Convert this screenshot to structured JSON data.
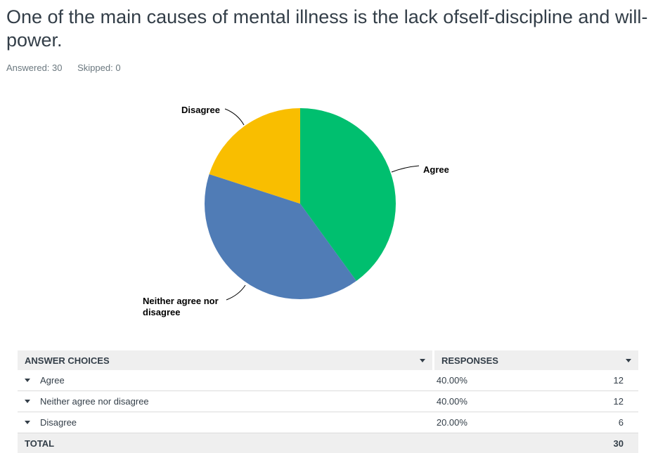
{
  "question": "One of the main causes of mental illness is the lack ofself-discipline and will-power.",
  "stats": {
    "answered": "Answered: 30",
    "skipped": "Skipped: 0"
  },
  "colors": {
    "agree": "#00bf6f",
    "neither": "#507cb6",
    "disagree": "#f9be00"
  },
  "chart_data": {
    "type": "pie",
    "categories": [
      "Agree",
      "Neither agree nor disagree",
      "Disagree"
    ],
    "values": [
      40,
      40,
      20
    ],
    "labels": [
      "Agree",
      "Neither agree nor\ndisagree",
      "Disagree"
    ],
    "colors": [
      "#00bf6f",
      "#507cb6",
      "#f9be00"
    ]
  },
  "table": {
    "col_choices": "ANSWER CHOICES",
    "col_responses": "RESPONSES",
    "rows": [
      {
        "choice": "Agree",
        "percent": "40.00%",
        "count": "12"
      },
      {
        "choice": "Neither agree nor disagree",
        "percent": "40.00%",
        "count": "12"
      },
      {
        "choice": "Disagree",
        "percent": "20.00%",
        "count": "6"
      }
    ],
    "total_label": "TOTAL",
    "total_value": "30"
  }
}
